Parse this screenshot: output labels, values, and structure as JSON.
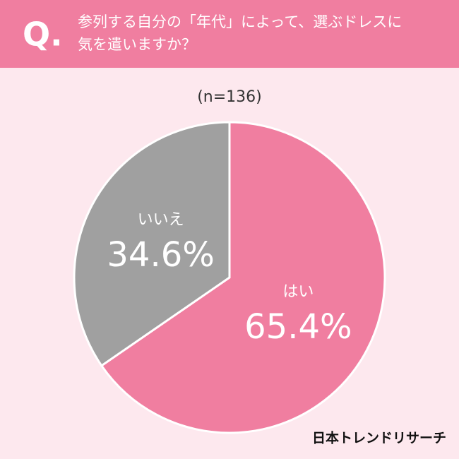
{
  "chart_data": {
    "type": "pie",
    "question_mark": "Q.",
    "title": [
      "参列する自分の「年代」によって、選ぶドレスに",
      "気を遣いますか？"
    ],
    "subtitle": "(n=136)",
    "categories": [
      "はい",
      "いいえ"
    ],
    "values": [
      65.4,
      34.6
    ],
    "value_labels": [
      "65.4%",
      "34.6%"
    ],
    "colors": [
      "#f07ea0",
      "#a0a0a0"
    ],
    "source": "日本トレンドリサーチ"
  }
}
